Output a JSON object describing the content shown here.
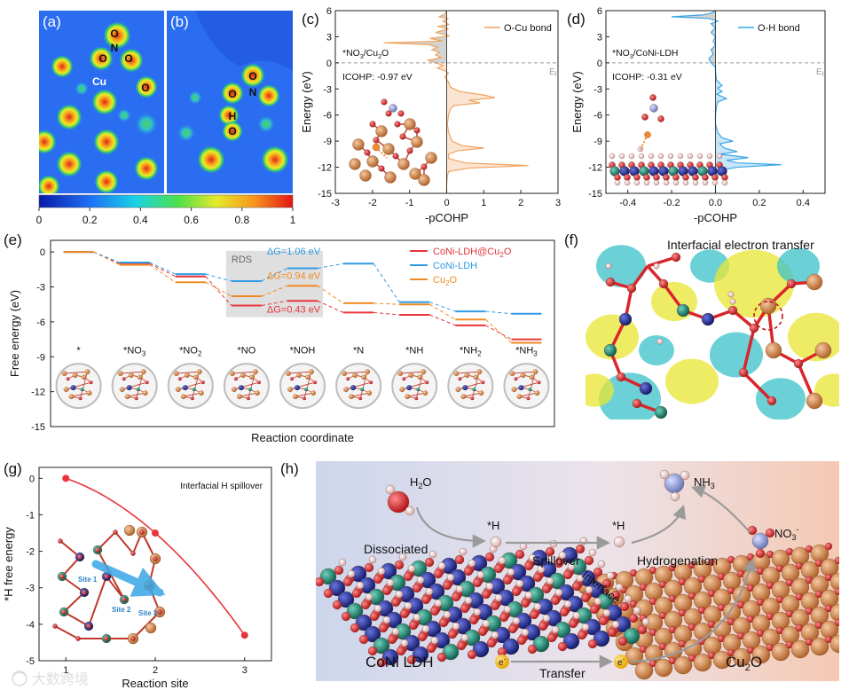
{
  "panels": {
    "a": "(a)",
    "b": "(b)",
    "c": "(c)",
    "d": "(d)",
    "e": "(e)",
    "f": "(f)",
    "g": "(g)",
    "h": "(h)"
  },
  "elf": {
    "labels_a": [
      "O",
      "N",
      "O",
      "O",
      "Cu",
      "O"
    ],
    "labels_b": [
      "O",
      "N",
      "O",
      "H",
      "O"
    ],
    "colorbar_ticks": [
      "0",
      "0.2",
      "0.4",
      "0.6",
      "0.8",
      "1"
    ],
    "colorbar_range": [
      0,
      1
    ]
  },
  "colors": {
    "cu_o": "#f0a35e",
    "o_h": "#39a6e6",
    "red": "#e8343a",
    "blue": "#2f9be3",
    "orange": "#f08a24",
    "cu_atom": "#c9834f",
    "o_atom": "#d8262c",
    "h_atom": "#f4d6d6",
    "co_atom": "#1e8c78",
    "ni_atom": "#23319a",
    "isosurface_yellow": "#e8e631",
    "isosurface_cyan": "#39c2c9"
  },
  "chart_data": [
    {
      "id": "c",
      "type": "line",
      "series": [
        {
          "name": "O-Cu bond",
          "color": "#f0a35e"
        }
      ],
      "xlabel": "-pCOHP",
      "ylabel": "Energy (eV)",
      "xlim": [
        -3,
        3
      ],
      "ylim": [
        -15,
        6
      ],
      "xticks": [
        -3,
        -2,
        -1,
        0,
        1,
        2,
        3
      ],
      "yticks": [
        -15,
        -12,
        -9,
        -6,
        -3,
        0,
        3,
        6
      ],
      "fermi_label": "E",
      "fermi_sub": "f",
      "annotation_system": "*NO",
      "annotation_system_sub": "3",
      "annotation_system_tail": "/Cu",
      "annotation_system_sub2": "2",
      "annotation_system_end": "O",
      "icohp": "ICOHP: -0.97 eV",
      "profile": [
        [
          6,
          0
        ],
        [
          5.6,
          -0.05
        ],
        [
          5.3,
          -0.2
        ],
        [
          5.1,
          0.03
        ],
        [
          4.8,
          -0.1
        ],
        [
          4.4,
          0.05
        ],
        [
          4.2,
          -0.25
        ],
        [
          3.9,
          0.05
        ],
        [
          3.5,
          -0.3
        ],
        [
          3.1,
          0.08
        ],
        [
          2.8,
          -0.45
        ],
        [
          2.5,
          -0.1
        ],
        [
          2.3,
          -1.7
        ],
        [
          2.1,
          -0.5
        ],
        [
          1.8,
          -0.25
        ],
        [
          1.5,
          -0.4
        ],
        [
          1.2,
          -0.2
        ],
        [
          0.9,
          -0.3
        ],
        [
          0.6,
          -0.15
        ],
        [
          0.3,
          -0.5
        ],
        [
          0.0,
          -0.3
        ],
        [
          -0.3,
          -0.1
        ],
        [
          -0.6,
          -0.25
        ],
        [
          -0.9,
          -0.05
        ],
        [
          -1.2,
          0.05
        ],
        [
          -1.6,
          -0.05
        ],
        [
          -2.2,
          0.05
        ],
        [
          -2.8,
          0.1
        ],
        [
          -3.3,
          0.35
        ],
        [
          -3.7,
          1.0
        ],
        [
          -4.0,
          1.3
        ],
        [
          -4.3,
          0.6
        ],
        [
          -4.6,
          0.9
        ],
        [
          -4.9,
          0.2
        ],
        [
          -5.3,
          0.1
        ],
        [
          -6,
          0.05
        ],
        [
          -7,
          0.02
        ],
        [
          -8,
          0.05
        ],
        [
          -9,
          0.15
        ],
        [
          -9.5,
          0.4
        ],
        [
          -9.8,
          1.0
        ],
        [
          -10.1,
          0.3
        ],
        [
          -10.5,
          0.05
        ],
        [
          -11,
          0.05
        ],
        [
          -11.5,
          0.5
        ],
        [
          -11.8,
          2.2
        ],
        [
          -12.1,
          0.6
        ],
        [
          -12.5,
          0.05
        ],
        [
          -13,
          0.02
        ],
        [
          -14,
          0
        ],
        [
          -15,
          0
        ]
      ]
    },
    {
      "id": "d",
      "type": "line",
      "series": [
        {
          "name": "O-H bond",
          "color": "#39a6e6"
        }
      ],
      "xlabel": "-pCOHP",
      "ylabel": "Energy (eV)",
      "xlim": [
        -0.5,
        0.5
      ],
      "ylim": [
        -15,
        6
      ],
      "xticks": [
        -0.4,
        -0.2,
        0.0,
        0.2,
        0.4
      ],
      "yticks": [
        -15,
        -12,
        -9,
        -6,
        -3,
        0,
        3,
        6
      ],
      "fermi_label": "E",
      "fermi_sub": "f",
      "annotation_system": "*NO",
      "annotation_system_sub": "3",
      "annotation_system_tail": "/CoNi-LDH",
      "icohp": "ICOHP: -0.31 eV",
      "profile": [
        [
          6,
          0
        ],
        [
          5.7,
          -0.02
        ],
        [
          5.5,
          -0.06
        ],
        [
          5.3,
          -0.2
        ],
        [
          5.1,
          -0.03
        ],
        [
          4.8,
          0.01
        ],
        [
          4.5,
          -0.02
        ],
        [
          4.0,
          0
        ],
        [
          3.5,
          -0.02
        ],
        [
          3.0,
          0
        ],
        [
          2.5,
          -0.01
        ],
        [
          2.0,
          0
        ],
        [
          1.5,
          -0.02
        ],
        [
          1.0,
          -0.01
        ],
        [
          0.5,
          -0.03
        ],
        [
          0.0,
          -0.02
        ],
        [
          -0.5,
          0
        ],
        [
          -1.0,
          0
        ],
        [
          -2.0,
          0.005
        ],
        [
          -2.6,
          0.03
        ],
        [
          -2.9,
          0.01
        ],
        [
          -3.3,
          0.03
        ],
        [
          -3.6,
          0.005
        ],
        [
          -4.1,
          0.05
        ],
        [
          -4.5,
          0.01
        ],
        [
          -5.0,
          0.005
        ],
        [
          -6,
          0
        ],
        [
          -7,
          0
        ],
        [
          -8,
          0.01
        ],
        [
          -8.6,
          0.03
        ],
        [
          -9.0,
          0.08
        ],
        [
          -9.3,
          0.02
        ],
        [
          -9.8,
          0.04
        ],
        [
          -10.2,
          0.1
        ],
        [
          -10.5,
          0.02
        ],
        [
          -10.9,
          0.15
        ],
        [
          -11.2,
          0.05
        ],
        [
          -11.5,
          0.1
        ],
        [
          -11.7,
          0.3
        ],
        [
          -12.0,
          0.1
        ],
        [
          -12.3,
          0.03
        ],
        [
          -12.8,
          0.01
        ],
        [
          -13.5,
          0
        ],
        [
          -15,
          0
        ]
      ]
    },
    {
      "id": "e",
      "type": "line",
      "ylabel": "Free energy (eV)",
      "xlabel": "Reaction coordinate",
      "ylim": [
        -15,
        1
      ],
      "yticks": [
        0,
        -3,
        -6,
        -9,
        -12,
        -15
      ],
      "categories": [
        "*",
        "*NO3",
        "*NO2",
        "*NO",
        "*NOH",
        "*N",
        "*NH",
        "*NH2",
        "*NH3"
      ],
      "category_labels": [
        {
          "base": "*",
          "sub": ""
        },
        {
          "base": "*NO",
          "sub": "3"
        },
        {
          "base": "*NO",
          "sub": "2"
        },
        {
          "base": "*NO",
          "sub": ""
        },
        {
          "base": "*NOH",
          "sub": ""
        },
        {
          "base": "*N",
          "sub": ""
        },
        {
          "base": "*NH",
          "sub": ""
        },
        {
          "base": "*NH",
          "sub": "2"
        },
        {
          "base": "*NH",
          "sub": "3"
        }
      ],
      "series": [
        {
          "name": "CoNi-LDH@Cu2O",
          "legend_base": "CoNi-LDH@Cu",
          "legend_sub": "2",
          "legend_tail": "O",
          "color": "#e8343a",
          "values": [
            0,
            -1.0,
            -2.1,
            -4.6,
            -4.2,
            -5.2,
            -5.4,
            -6.3,
            -7.5
          ]
        },
        {
          "name": "CoNi-LDH",
          "legend_base": "CoNi-LDH",
          "legend_sub": "",
          "legend_tail": "",
          "color": "#2f9be3",
          "values": [
            0,
            -0.9,
            -1.9,
            -2.5,
            -1.4,
            -1.0,
            -4.3,
            -5.1,
            -5.3
          ]
        },
        {
          "name": "Cu2O",
          "legend_base": "Cu",
          "legend_sub": "2",
          "legend_tail": "O",
          "color": "#f08a24",
          "values": [
            0,
            -1.1,
            -2.6,
            -3.8,
            -2.9,
            -4.4,
            -4.5,
            -5.8,
            -7.8
          ]
        }
      ],
      "rds_label": "RDS",
      "dg_labels": [
        "ΔG=1.06 eV",
        "ΔG=0.94 eV",
        "ΔG=0.43 eV"
      ]
    },
    {
      "id": "g",
      "type": "line",
      "title": "Interfacial H spillover",
      "ylabel": "*H free energy",
      "xlabel": "Reaction site",
      "xlim": [
        0.7,
        3.3
      ],
      "ylim": [
        -5,
        0.3
      ],
      "xticks": [
        1,
        2,
        3
      ],
      "yticks": [
        0,
        -1,
        -2,
        -3,
        -4,
        -5
      ],
      "x": [
        1,
        2,
        3
      ],
      "values": [
        0.0,
        -1.5,
        -4.3
      ],
      "color": "#e8343a",
      "site_labels": [
        "Site 1",
        "Site 2",
        "Site 3"
      ]
    }
  ],
  "panel_f": {
    "title": "Interfacial electron transfer"
  },
  "panel_h": {
    "h2o": "H",
    "h2o_sub": "2",
    "h2o_tail": "O",
    "nh3": "NH",
    "nh3_sub": "3",
    "no3": "NO",
    "no3_sub": "3",
    "no3_sup": "-",
    "h_star_1": "*H",
    "h_star_2": "*H",
    "dissociated": "Dissociated",
    "spillover": "Spillover",
    "hydrogenation": "Hydrogenation",
    "interface": "Interface",
    "coni_ldh": "CoNi LDH",
    "cu2o": "Cu",
    "cu2o_sub": "2",
    "cu2o_tail": "O",
    "electron": "e",
    "electron_sup": "-",
    "transfer": "Transfer"
  },
  "watermark": "大数跨境"
}
